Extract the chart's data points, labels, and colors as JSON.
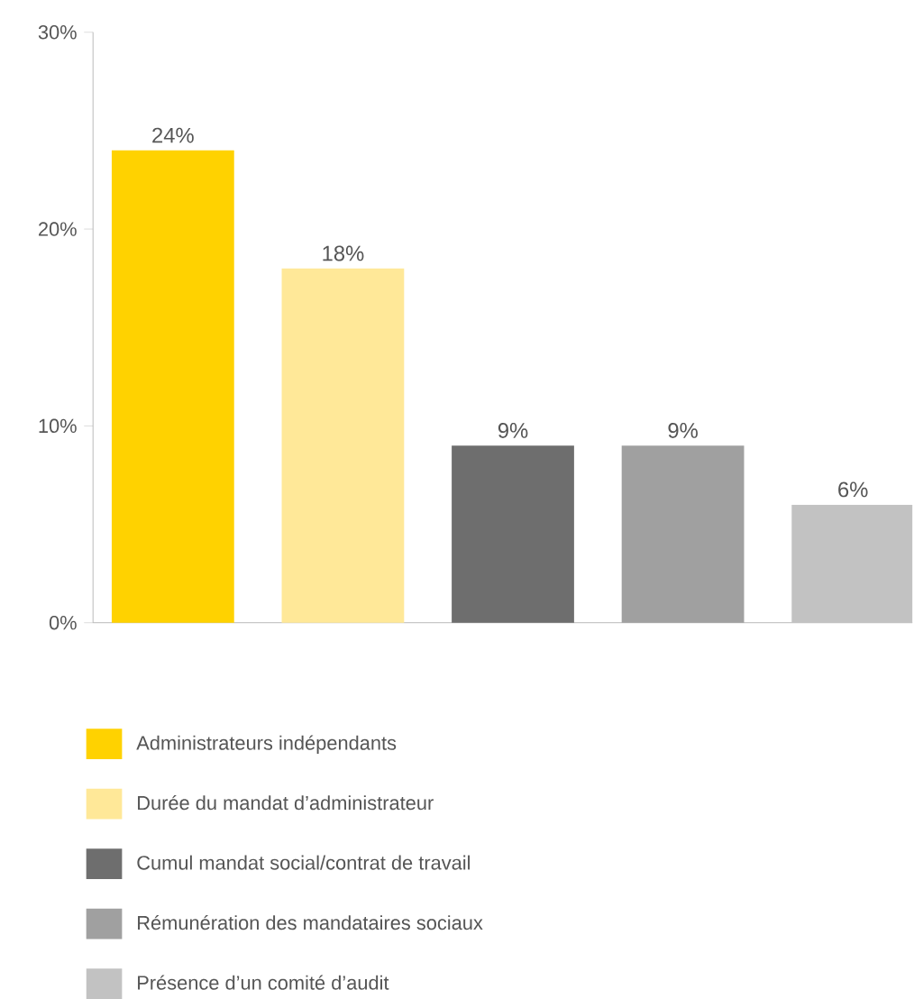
{
  "chart_data": {
    "type": "bar",
    "categories": [
      null,
      null,
      null,
      null,
      null
    ],
    "series": [
      {
        "name": "Administrateurs indépendants",
        "color": "#ffd200",
        "values": [
          24,
          null,
          null,
          null,
          null
        ],
        "value_labels": [
          "24%",
          null,
          null,
          null,
          null
        ]
      },
      {
        "name": "Durée du mandat d’administrateur",
        "color": "#ffe898",
        "values": [
          null,
          18,
          null,
          null,
          null
        ],
        "value_labels": [
          null,
          "18%",
          null,
          null,
          null
        ]
      },
      {
        "name": "Cumul mandat social/contrat de travail",
        "color": "#6e6e6e",
        "values": [
          null,
          null,
          9,
          null,
          null
        ],
        "value_labels": [
          null,
          null,
          "9%",
          null,
          null
        ]
      },
      {
        "name": "Rémunération des mandataires sociaux",
        "color": "#a0a0a0",
        "values": [
          null,
          null,
          null,
          9,
          null
        ],
        "value_labels": [
          null,
          null,
          null,
          "9%",
          null
        ]
      },
      {
        "name": "Présence d’un comité d’audit",
        "color": "#c2c2c2",
        "values": [
          null,
          null,
          null,
          null,
          6
        ],
        "value_labels": [
          null,
          null,
          null,
          null,
          "6%"
        ]
      }
    ],
    "ylim": [
      0,
      30
    ],
    "yticks": [
      {
        "value": 0,
        "label": "0%"
      },
      {
        "value": 10,
        "label": "10%"
      },
      {
        "value": 20,
        "label": "20%"
      },
      {
        "value": 30,
        "label": "30%"
      }
    ],
    "tick_labels": "y",
    "legend": "bottom"
  }
}
